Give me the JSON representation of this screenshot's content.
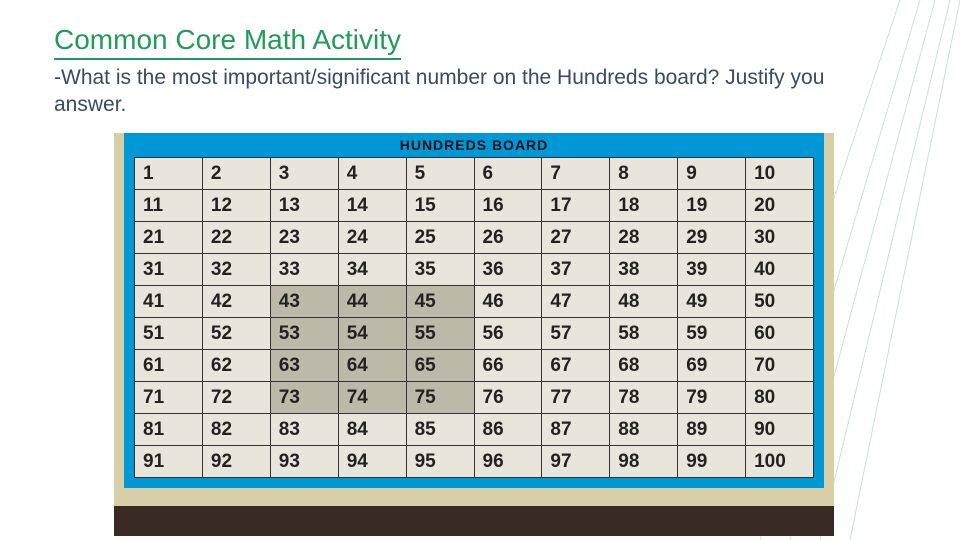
{
  "title": "Common Core Math Activity",
  "prompt": "‑What is the most important/significant number on the Hundreds board? Justify you answer.",
  "board": {
    "header": "HUNDREDS BOARD",
    "rows": 10,
    "cols": 10,
    "start": 1,
    "colors": {
      "frame": "#0097d6",
      "cell_bg": "#e8e6dc",
      "cell_bg_shadow": "#bdb9a8",
      "cell_text": "#222222",
      "grid_line": "#333333",
      "backdrop": "#d6cfa8",
      "desk": "#3a2a24"
    },
    "cell_fontsize": 19,
    "header_fontsize": 14
  },
  "title_style": {
    "color": "#1f9b5a",
    "underline_color": "#1f9b5a",
    "fontsize": 28
  },
  "prompt_style": {
    "color": "#3a4a63",
    "fontsize": 21
  },
  "decoration": {
    "line_color": "#1f9b5a",
    "opacity": 0.25
  }
}
